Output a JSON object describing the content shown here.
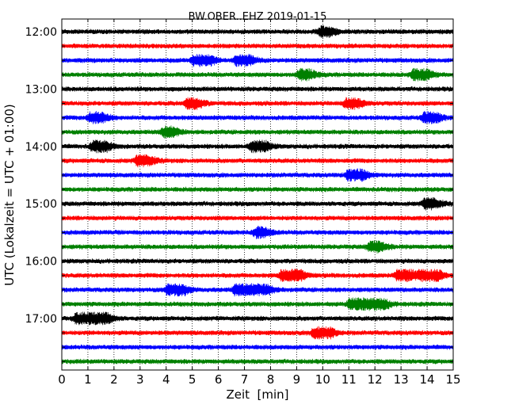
{
  "chart_data": {
    "type": "line",
    "title": "BW.OBER..EHZ 2019-01-15",
    "xlabel": "Zeit  [min]",
    "ylabel": "UTC (Lokalzeit = UTC + 01:00)",
    "xlim": [
      0,
      15
    ],
    "x_ticks": [
      "0",
      "1",
      "2",
      "3",
      "4",
      "5",
      "6",
      "7",
      "8",
      "9",
      "10",
      "11",
      "12",
      "13",
      "14",
      "15"
    ],
    "y_ticks": [
      "12:00",
      "13:00",
      "14:00",
      "15:00",
      "16:00",
      "17:00"
    ],
    "grid": "vertical dotted",
    "colors": [
      "#000000",
      "#ff0000",
      "#0000ff",
      "#008000"
    ],
    "trace_interval_min": 15,
    "traces": [
      {
        "start": "12:00",
        "color": "#000000",
        "events": [
          {
            "t": 10.0,
            "amp": 0.8
          }
        ]
      },
      {
        "start": "12:15",
        "color": "#ff0000",
        "events": []
      },
      {
        "start": "12:30",
        "color": "#0000ff",
        "events": [
          {
            "t": 5.2,
            "amp": 2.2
          },
          {
            "t": 6.8,
            "amp": 1.5
          }
        ]
      },
      {
        "start": "12:45",
        "color": "#008000",
        "events": [
          {
            "t": 13.6,
            "amp": 1.6
          },
          {
            "t": 9.2,
            "amp": 1.0
          }
        ]
      },
      {
        "start": "13:00",
        "color": "#000000",
        "events": []
      },
      {
        "start": "13:15",
        "color": "#ff0000",
        "events": [
          {
            "t": 11.0,
            "amp": 1.0
          },
          {
            "t": 4.9,
            "amp": 1.0
          }
        ]
      },
      {
        "start": "13:30",
        "color": "#0000ff",
        "events": [
          {
            "t": 1.2,
            "amp": 1.2
          },
          {
            "t": 14.0,
            "amp": 1.2
          }
        ]
      },
      {
        "start": "13:45",
        "color": "#008000",
        "events": [
          {
            "t": 4.0,
            "amp": 0.9
          }
        ]
      },
      {
        "start": "14:00",
        "color": "#000000",
        "events": [
          {
            "t": 1.3,
            "amp": 1.4
          },
          {
            "t": 7.4,
            "amp": 1.4
          }
        ]
      },
      {
        "start": "14:15",
        "color": "#ff0000",
        "events": [
          {
            "t": 3.0,
            "amp": 1.2
          }
        ]
      },
      {
        "start": "14:30",
        "color": "#0000ff",
        "events": [
          {
            "t": 11.1,
            "amp": 1.6
          }
        ]
      },
      {
        "start": "14:45",
        "color": "#008000",
        "events": []
      },
      {
        "start": "15:00",
        "color": "#000000",
        "events": [
          {
            "t": 14.0,
            "amp": 1.0
          }
        ]
      },
      {
        "start": "15:15",
        "color": "#ff0000",
        "events": []
      },
      {
        "start": "15:30",
        "color": "#0000ff",
        "events": [
          {
            "t": 7.5,
            "amp": 0.8
          }
        ]
      },
      {
        "start": "15:45",
        "color": "#008000",
        "events": [
          {
            "t": 11.9,
            "amp": 1.0
          }
        ]
      },
      {
        "start": "16:00",
        "color": "#000000",
        "events": []
      },
      {
        "start": "16:15",
        "color": "#ff0000",
        "events": [
          {
            "t": 8.6,
            "amp": 3.2
          },
          {
            "t": 13.9,
            "amp": 3.0
          },
          {
            "t": 13.0,
            "amp": 1.8
          }
        ]
      },
      {
        "start": "16:30",
        "color": "#0000ff",
        "events": [
          {
            "t": 4.2,
            "amp": 2.0
          },
          {
            "t": 6.8,
            "amp": 2.4
          },
          {
            "t": 7.4,
            "amp": 2.3
          }
        ]
      },
      {
        "start": "16:45",
        "color": "#008000",
        "events": [
          {
            "t": 11.2,
            "amp": 2.5
          },
          {
            "t": 12.0,
            "amp": 1.2
          }
        ]
      },
      {
        "start": "17:00",
        "color": "#000000",
        "events": [
          {
            "t": 0.7,
            "amp": 2.3
          },
          {
            "t": 1.3,
            "amp": 2.0
          }
        ]
      },
      {
        "start": "17:15",
        "color": "#ff0000",
        "events": [
          {
            "t": 9.8,
            "amp": 2.2
          }
        ]
      },
      {
        "start": "17:30",
        "color": "#0000ff",
        "events": []
      },
      {
        "start": "17:45",
        "color": "#008000",
        "events": []
      }
    ]
  }
}
